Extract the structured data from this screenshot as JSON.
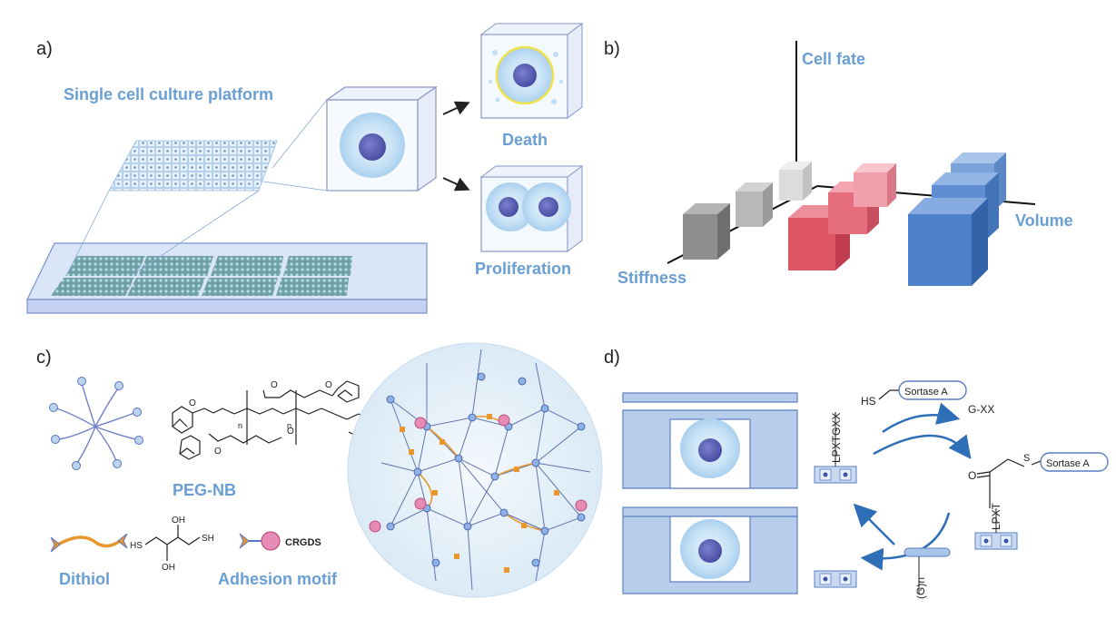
{
  "panels": {
    "a": {
      "label": "a)",
      "title": "Single cell culture platform",
      "outcome_death": "Death",
      "outcome_proliferation": "Proliferation"
    },
    "b": {
      "label": "b)",
      "axis_y": "Cell fate",
      "axis_x": "Stiffness",
      "axis_z": "Volume"
    },
    "c": {
      "label": "c)",
      "peg_label": "PEG-NB",
      "dithiol_label": "Dithiol",
      "adhesion_label": "Adhesion motif",
      "peptide": "CRGDS",
      "subscript_n": "n",
      "chem_o": "O",
      "chem_oh": "OH",
      "chem_hs": "HS",
      "chem_sh": "SH"
    },
    "d": {
      "label": "d)",
      "enzyme": "Sortase A",
      "thiol": "HS",
      "sulfur": "S",
      "oxygen": "O",
      "motif": "LPXTGXX",
      "motif_short": "LPXT",
      "leaving_group": "G-XX",
      "nucleophile": "(G)n"
    }
  },
  "colors": {
    "label_blue": "#6a9fd4",
    "cell_outer": "#c9e3f6",
    "cell_nucleus": "#5b5fb3",
    "gel_blue": "#9ec2e8",
    "red_cube": "#e05a6a",
    "grey_cube": "#9a9a9a",
    "blue_cube": "#4f86cf",
    "linker_orange": "#e8962e",
    "motif_pink": "#e78bb4",
    "arrow_blue": "#2f6fb7"
  }
}
